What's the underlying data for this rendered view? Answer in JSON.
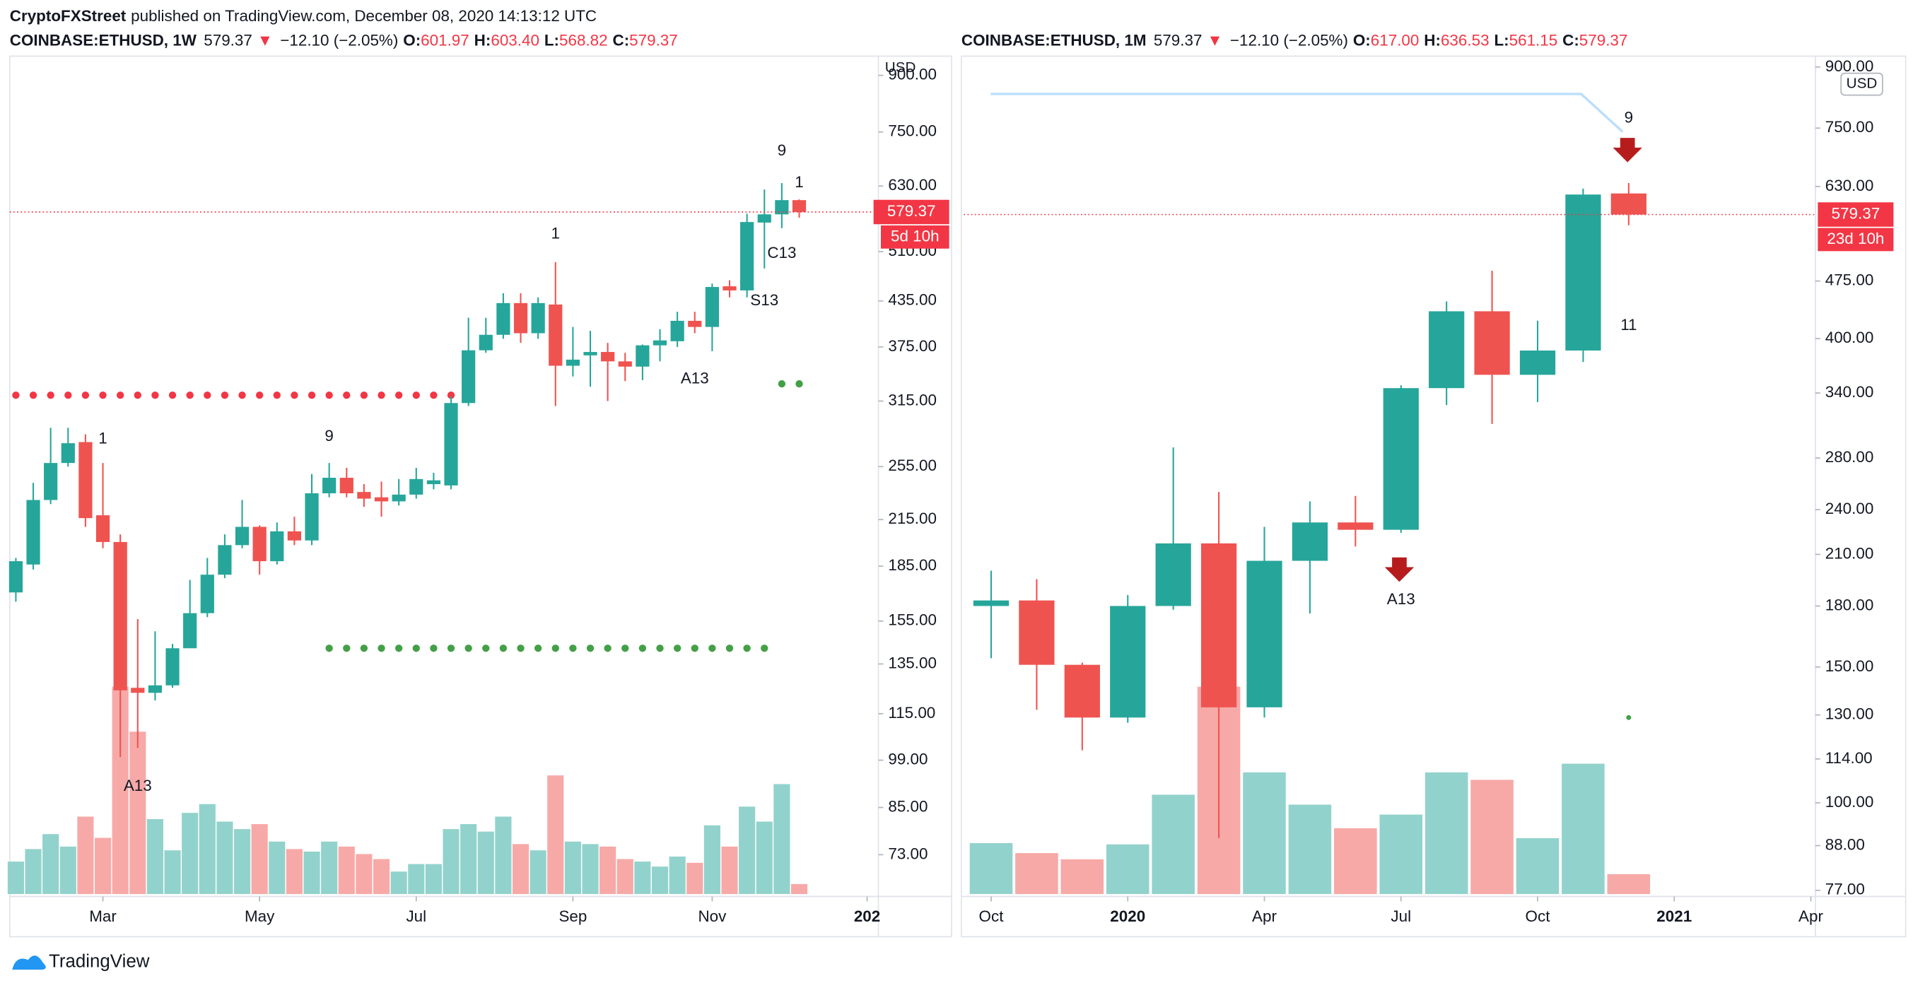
{
  "header": {
    "publisher": "CryptoFXStreet",
    "text": "published on TradingView.com, December 08, 2020 14:13:12 UTC"
  },
  "footer": {
    "brand": "TradingView"
  },
  "chart_data": [
    {
      "type": "candlestick",
      "legend": {
        "symbol": "COINBASE:ETHUSD, 1W",
        "last": "579.37",
        "arrow": "▼",
        "change": "−12.10 (−2.05%)",
        "ohlc": [
          {
            "key": "O:",
            "value": "601.97"
          },
          {
            "key": "H:",
            "value": "603.40"
          },
          {
            "key": "L:",
            "value": "568.82"
          },
          {
            "key": "C:",
            "value": "579.37"
          }
        ]
      },
      "currency": "USD",
      "log_scale": true,
      "grid": false,
      "ylim": [
        63.8,
        950
      ],
      "yticks": [
        {
          "value": 900,
          "label": "900.00"
        },
        {
          "value": 750,
          "label": "750.00"
        },
        {
          "value": 630,
          "label": "630.00"
        },
        {
          "value": 510,
          "label": "510.00"
        },
        {
          "value": 435,
          "label": "435.00"
        },
        {
          "value": 375,
          "label": "375.00"
        },
        {
          "value": 315,
          "label": "315.00"
        },
        {
          "value": 255,
          "label": "255.00"
        },
        {
          "value": 215,
          "label": "215.00"
        },
        {
          "value": 185,
          "label": "185.00"
        },
        {
          "value": 155,
          "label": "155.00"
        },
        {
          "value": 135,
          "label": "135.00"
        },
        {
          "value": 115,
          "label": "115.00"
        },
        {
          "value": 99,
          "label": "99.00"
        },
        {
          "value": 85,
          "label": "85.00"
        },
        {
          "value": 73,
          "label": "73.00"
        }
      ],
      "xlim": [
        -0.35,
        49.55
      ],
      "xticks": [
        {
          "value": 5,
          "label": "Mar"
        },
        {
          "value": 14,
          "label": "May"
        },
        {
          "value": 23,
          "label": "Jul"
        },
        {
          "value": 32,
          "label": "Sep"
        },
        {
          "value": 40,
          "label": "Nov"
        },
        {
          "value": 48.9,
          "label": "202"
        }
      ],
      "open": [
        170,
        186,
        229,
        258,
        276,
        218,
        200,
        125,
        123,
        126,
        142,
        159,
        180,
        198,
        210,
        188,
        207,
        201,
        234,
        246,
        235,
        231,
        228,
        233,
        241,
        240,
        313,
        371,
        390,
        432,
        392,
        430,
        353,
        365,
        369,
        358,
        352,
        377,
        382,
        408,
        400,
        456,
        450,
        560,
        575,
        601.97
      ],
      "high": [
        190,
        242,
        289,
        289,
        283,
        258,
        205,
        156,
        150,
        144,
        177,
        190,
        205,
        229,
        211,
        213,
        217,
        249,
        258,
        254,
        241,
        243,
        245,
        254,
        250,
        320,
        412,
        412,
        446,
        446,
        440,
        493,
        400,
        395,
        380,
        368,
        378,
        397,
        420,
        420,
        460,
        465,
        576,
        623,
        636,
        603.4
      ],
      "low": [
        165,
        183,
        226,
        255,
        210,
        196,
        100,
        103,
        120,
        125,
        142,
        157,
        178,
        196,
        180,
        186,
        198,
        198,
        231,
        231,
        224,
        217,
        225,
        230,
        237,
        237,
        310,
        368,
        385,
        380,
        385,
        310,
        341,
        330,
        315,
        336,
        337,
        358,
        375,
        392,
        370,
        440,
        440,
        483,
        550,
        568.82
      ],
      "close": [
        188,
        229,
        258,
        275,
        216,
        200,
        124,
        123,
        126,
        142,
        159,
        180,
        198,
        210,
        188,
        207,
        201,
        234,
        246,
        234,
        230,
        228,
        233,
        245,
        244,
        313,
        371,
        390,
        432,
        392,
        432,
        353,
        360,
        369,
        358,
        352,
        377,
        383,
        408,
        400,
        455,
        450,
        561,
        575,
        602,
        579.37
      ],
      "volume": [
        26,
        36,
        48,
        38,
        62,
        45,
        166,
        130,
        60,
        35,
        65,
        72,
        58,
        52,
        56,
        42,
        36,
        34,
        42,
        38,
        32,
        28,
        18,
        24,
        24,
        52,
        56,
        50,
        62,
        40,
        35,
        95,
        42,
        40,
        38,
        28,
        26,
        22,
        30,
        25,
        55,
        38,
        70,
        58,
        88,
        8
      ],
      "up_color": "#26a69a",
      "down_color": "#ef5350",
      "up_volume_color": "#92d2cc",
      "down_volume_color": "#f7a9a7",
      "last_price": {
        "value": 579.37,
        "countdown": "5d 10h",
        "color": "#f23645"
      },
      "annotations": [
        {
          "text": "1",
          "color": "#f23645",
          "index": 5
        },
        {
          "text": "9",
          "color": "#2fbf71",
          "index": 18
        },
        {
          "text": "1",
          "color": "#f23645",
          "index": 31
        },
        {
          "text": "9",
          "color": "#2fbf71",
          "index": 44
        },
        {
          "text": "1",
          "color": "#2fbf71",
          "index": 45
        },
        {
          "text": "C13",
          "color": "#e040fb",
          "index": 44
        },
        {
          "text": "S13",
          "color": "#ff9800",
          "index": 43
        },
        {
          "text": "A13",
          "color": "#2196f3",
          "index": 7
        },
        {
          "text": "A13",
          "color": "#2196f3",
          "index": 39
        }
      ],
      "levels": [
        {
          "value": 321,
          "color": "#f23645",
          "from": 0,
          "to": 25
        },
        {
          "value": 142,
          "color": "#43a047",
          "from": 18,
          "to": 43
        },
        {
          "value": 333,
          "color": "#43a047",
          "from": 44,
          "to": 45
        }
      ]
    },
    {
      "type": "candlestick",
      "legend": {
        "symbol": "COINBASE:ETHUSD, 1M",
        "last": "579.37",
        "arrow": "▼",
        "change": "−12.10 (−2.05%)",
        "ohlc": [
          {
            "key": "O:",
            "value": "617.00"
          },
          {
            "key": "H:",
            "value": "636.53"
          },
          {
            "key": "L:",
            "value": "561.15"
          },
          {
            "key": "C:",
            "value": "579.37"
          }
        ]
      },
      "currency": "USD",
      "log_scale": true,
      "grid": false,
      "ylim": [
        75.6,
        923
      ],
      "yticks": [
        {
          "value": 900,
          "label": "900.00"
        },
        {
          "value": 750,
          "label": "750.00"
        },
        {
          "value": 630,
          "label": "630.00"
        },
        {
          "value": 475,
          "label": "475.00"
        },
        {
          "value": 400,
          "label": "400.00"
        },
        {
          "value": 340,
          "label": "340.00"
        },
        {
          "value": 280,
          "label": "280.00"
        },
        {
          "value": 240,
          "label": "240.00"
        },
        {
          "value": 210,
          "label": "210.00"
        },
        {
          "value": 180,
          "label": "180.00"
        },
        {
          "value": 150,
          "label": "150.00"
        },
        {
          "value": 130,
          "label": "130.00"
        },
        {
          "value": 114,
          "label": "114.00"
        },
        {
          "value": 100,
          "label": "100.00"
        },
        {
          "value": 88,
          "label": "88.00"
        },
        {
          "value": 77,
          "label": "77.00"
        }
      ],
      "xlim": [
        -0.6,
        18.1
      ],
      "xticks": [
        {
          "value": 0,
          "label": "Oct"
        },
        {
          "value": 3,
          "label": "2020"
        },
        {
          "value": 6,
          "label": "Apr"
        },
        {
          "value": 9,
          "label": "Jul"
        },
        {
          "value": 12,
          "label": "Oct"
        },
        {
          "value": 15,
          "label": "2021"
        },
        {
          "value": 18,
          "label": "Apr"
        }
      ],
      "open": [
        180,
        183,
        151,
        129,
        180,
        217,
        133,
        206,
        231,
        226,
        345,
        434,
        359,
        386,
        617.0
      ],
      "high": [
        200,
        195,
        152,
        186,
        289,
        253,
        228,
        246,
        250,
        348,
        447,
        490,
        422,
        626,
        636.53
      ],
      "low": [
        154,
        132,
        117,
        127,
        178,
        90,
        129,
        176,
        215,
        224,
        328,
        310,
        331,
        373,
        561.15
      ],
      "close": [
        183,
        151,
        129,
        180,
        217,
        133,
        206,
        231,
        226,
        345,
        434,
        359,
        386,
        615,
        579.37
      ],
      "volume": [
        41,
        33,
        28,
        40,
        80,
        167,
        98,
        72,
        53,
        64,
        98,
        92,
        45,
        105,
        16
      ],
      "up_color": "#26a69a",
      "down_color": "#ef5350",
      "up_volume_color": "#92d2cc",
      "down_volume_color": "#f7a9a7",
      "last_price": {
        "value": 579.37,
        "countdown": "23d 10h",
        "color": "#f23645"
      },
      "annotations": [
        {
          "text": "9",
          "color": "#2fbf71",
          "index": 14
        },
        {
          "text": "11",
          "color": "#2fbf71",
          "index": 14
        },
        {
          "text": "A13",
          "color": "#2196f3",
          "index": 9
        }
      ],
      "levels": [
        {
          "value": 129,
          "color": "#43a047",
          "from": 14,
          "to": 14
        }
      ]
    }
  ]
}
